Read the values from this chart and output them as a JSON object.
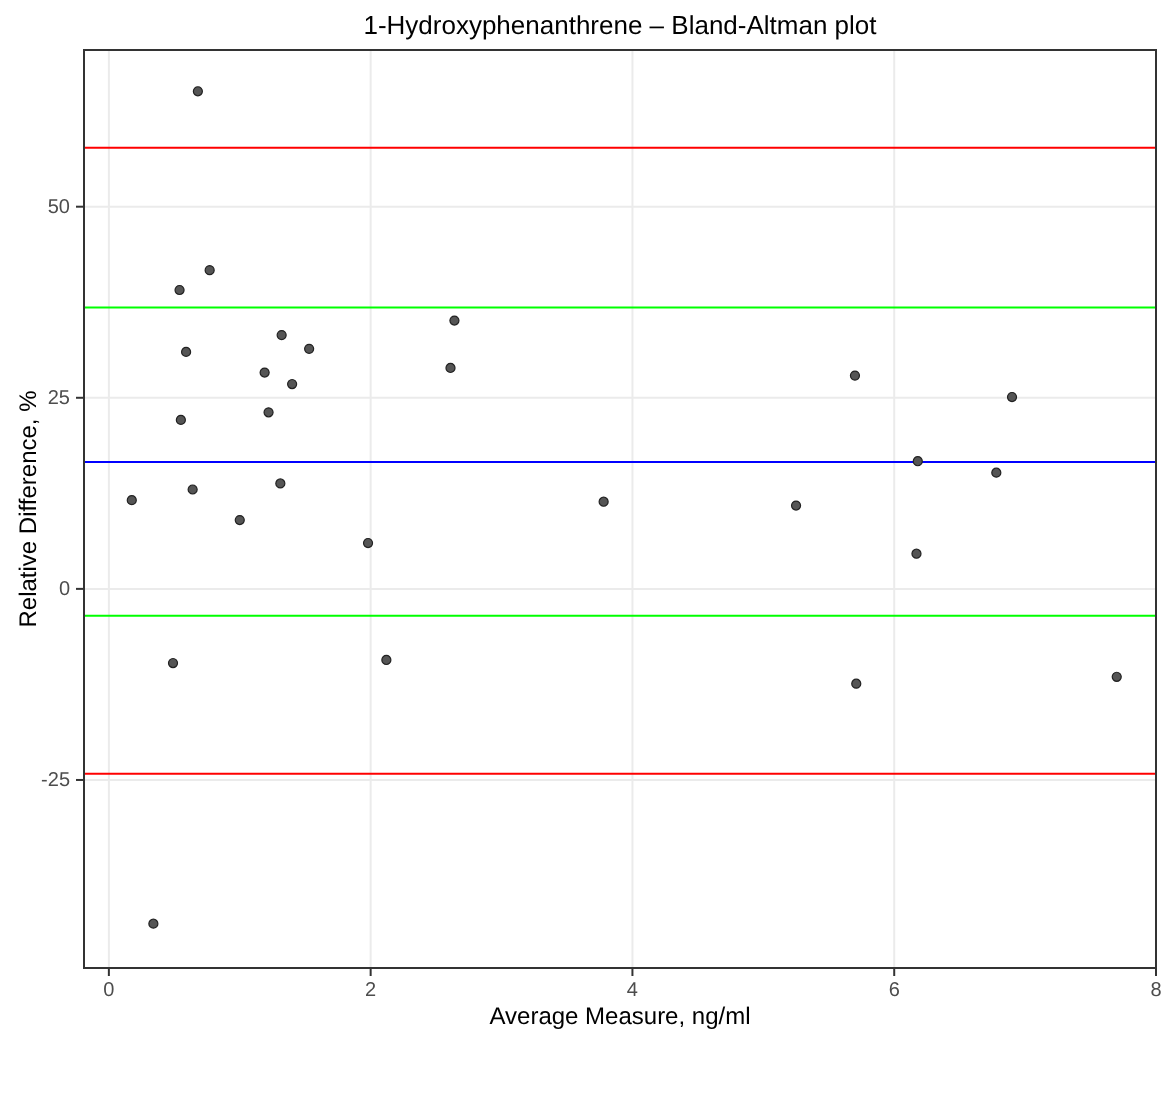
{
  "chart_data": {
    "type": "scatter",
    "title": "1-Hydroxyphenanthrene – Bland-Altman plot",
    "xlabel": "Average Measure, ng/ml",
    "ylabel": "Relative Difference, %",
    "xlim": [
      -0.19,
      8.0
    ],
    "xticks": [
      0,
      2,
      4,
      6,
      8
    ],
    "ylim": [
      -49.6,
      70.5
    ],
    "yticks": [
      -25,
      0,
      25,
      50
    ],
    "grid": true,
    "marker": "circle",
    "series": [
      {
        "color": "#555555",
        "x": [
          0.68,
          0.77,
          0.54,
          1.32,
          0.59,
          1.53,
          1.19,
          1.4,
          0.55,
          1.22,
          0.175,
          0.64,
          1.31,
          1.0,
          1.98,
          0.49,
          2.12,
          0.34,
          2.64,
          2.61,
          5.7,
          6.9,
          6.18,
          6.78,
          3.78,
          5.25,
          6.17,
          5.71,
          7.7
        ],
        "values": [
          65.1,
          41.7,
          39.1,
          33.2,
          31.0,
          31.4,
          28.3,
          26.8,
          22.1,
          23.1,
          11.6,
          13.0,
          13.8,
          9.0,
          6.0,
          -9.7,
          -9.3,
          -43.8,
          35.1,
          28.9,
          27.9,
          25.1,
          16.7,
          15.2,
          11.4,
          10.9,
          4.6,
          -12.4,
          -11.5
        ]
      }
    ],
    "ref_lines": [
      {
        "axis": "y",
        "value": 57.7,
        "color": "#ff0000"
      },
      {
        "axis": "y",
        "value": 36.8,
        "color": "#00ff00"
      },
      {
        "axis": "y",
        "value": 16.6,
        "color": "#0000ff"
      },
      {
        "axis": "y",
        "value": -3.5,
        "color": "#00ff00"
      },
      {
        "axis": "y",
        "value": -24.2,
        "color": "#ff0000"
      }
    ]
  }
}
